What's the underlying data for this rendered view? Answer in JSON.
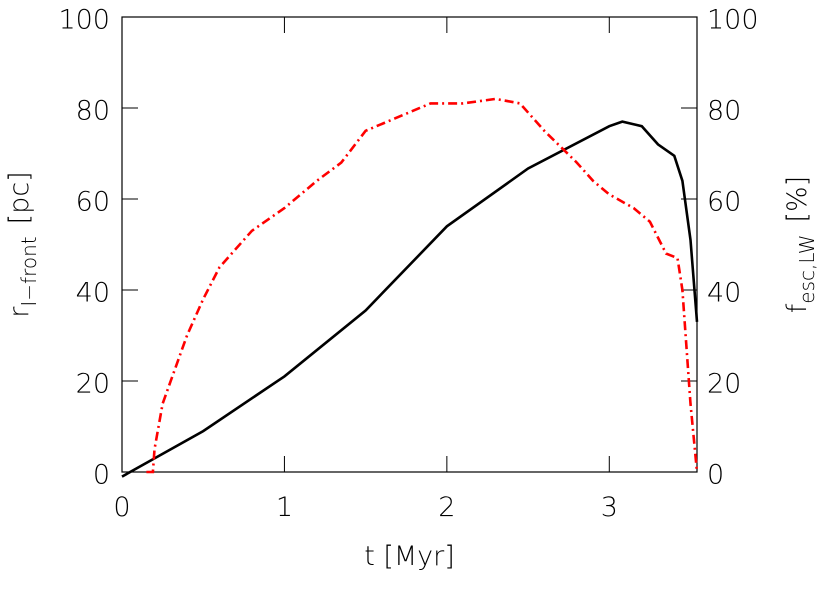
{
  "chart_data": {
    "type": "line",
    "xlabel": "t [Myr]",
    "ylabel": {
      "main": "r",
      "sub": "I−front",
      "unit": "[pc]"
    },
    "y2label": {
      "main": "f",
      "sub": "esc,LW",
      "unit": "[%]"
    },
    "xlim": [
      0,
      3.54
    ],
    "xticks": [
      0,
      1,
      2,
      3
    ],
    "ylim": [
      0,
      100
    ],
    "yticks": [
      0,
      20,
      40,
      60,
      80,
      100
    ],
    "y2lim": [
      0,
      100
    ],
    "y2ticks": [
      0,
      20,
      40,
      60,
      80,
      100
    ],
    "series": [
      {
        "name": "r_I-front",
        "color": "#000000",
        "dash": "solid",
        "x": [
          0,
          0.2,
          0.5,
          1.0,
          1.5,
          2.0,
          2.5,
          3.0,
          3.08,
          3.2,
          3.3,
          3.4,
          3.45,
          3.5,
          3.54
        ],
        "values": [
          -1,
          3,
          9,
          21,
          35.5,
          54,
          66.7,
          76,
          77,
          76,
          72,
          69.5,
          64,
          51,
          33
        ]
      },
      {
        "name": "f_esc,LW",
        "color": "#ff0000",
        "dash": "dashdot",
        "axis": "y2",
        "x": [
          0.15,
          0.19,
          0.2,
          0.25,
          0.3,
          0.4,
          0.5,
          0.6,
          0.8,
          1.0,
          1.2,
          1.35,
          1.5,
          1.7,
          1.9,
          2.1,
          2.3,
          2.45,
          2.6,
          2.8,
          2.9,
          3.0,
          3.15,
          3.25,
          3.35,
          3.42,
          3.45,
          3.5,
          3.54
        ],
        "values": [
          0,
          0,
          5,
          15,
          20,
          30,
          38,
          45,
          53,
          58,
          64,
          68,
          75,
          78,
          81,
          81,
          82,
          81,
          75,
          68,
          64,
          61,
          58,
          55,
          48,
          47,
          40,
          15,
          0
        ]
      }
    ]
  }
}
